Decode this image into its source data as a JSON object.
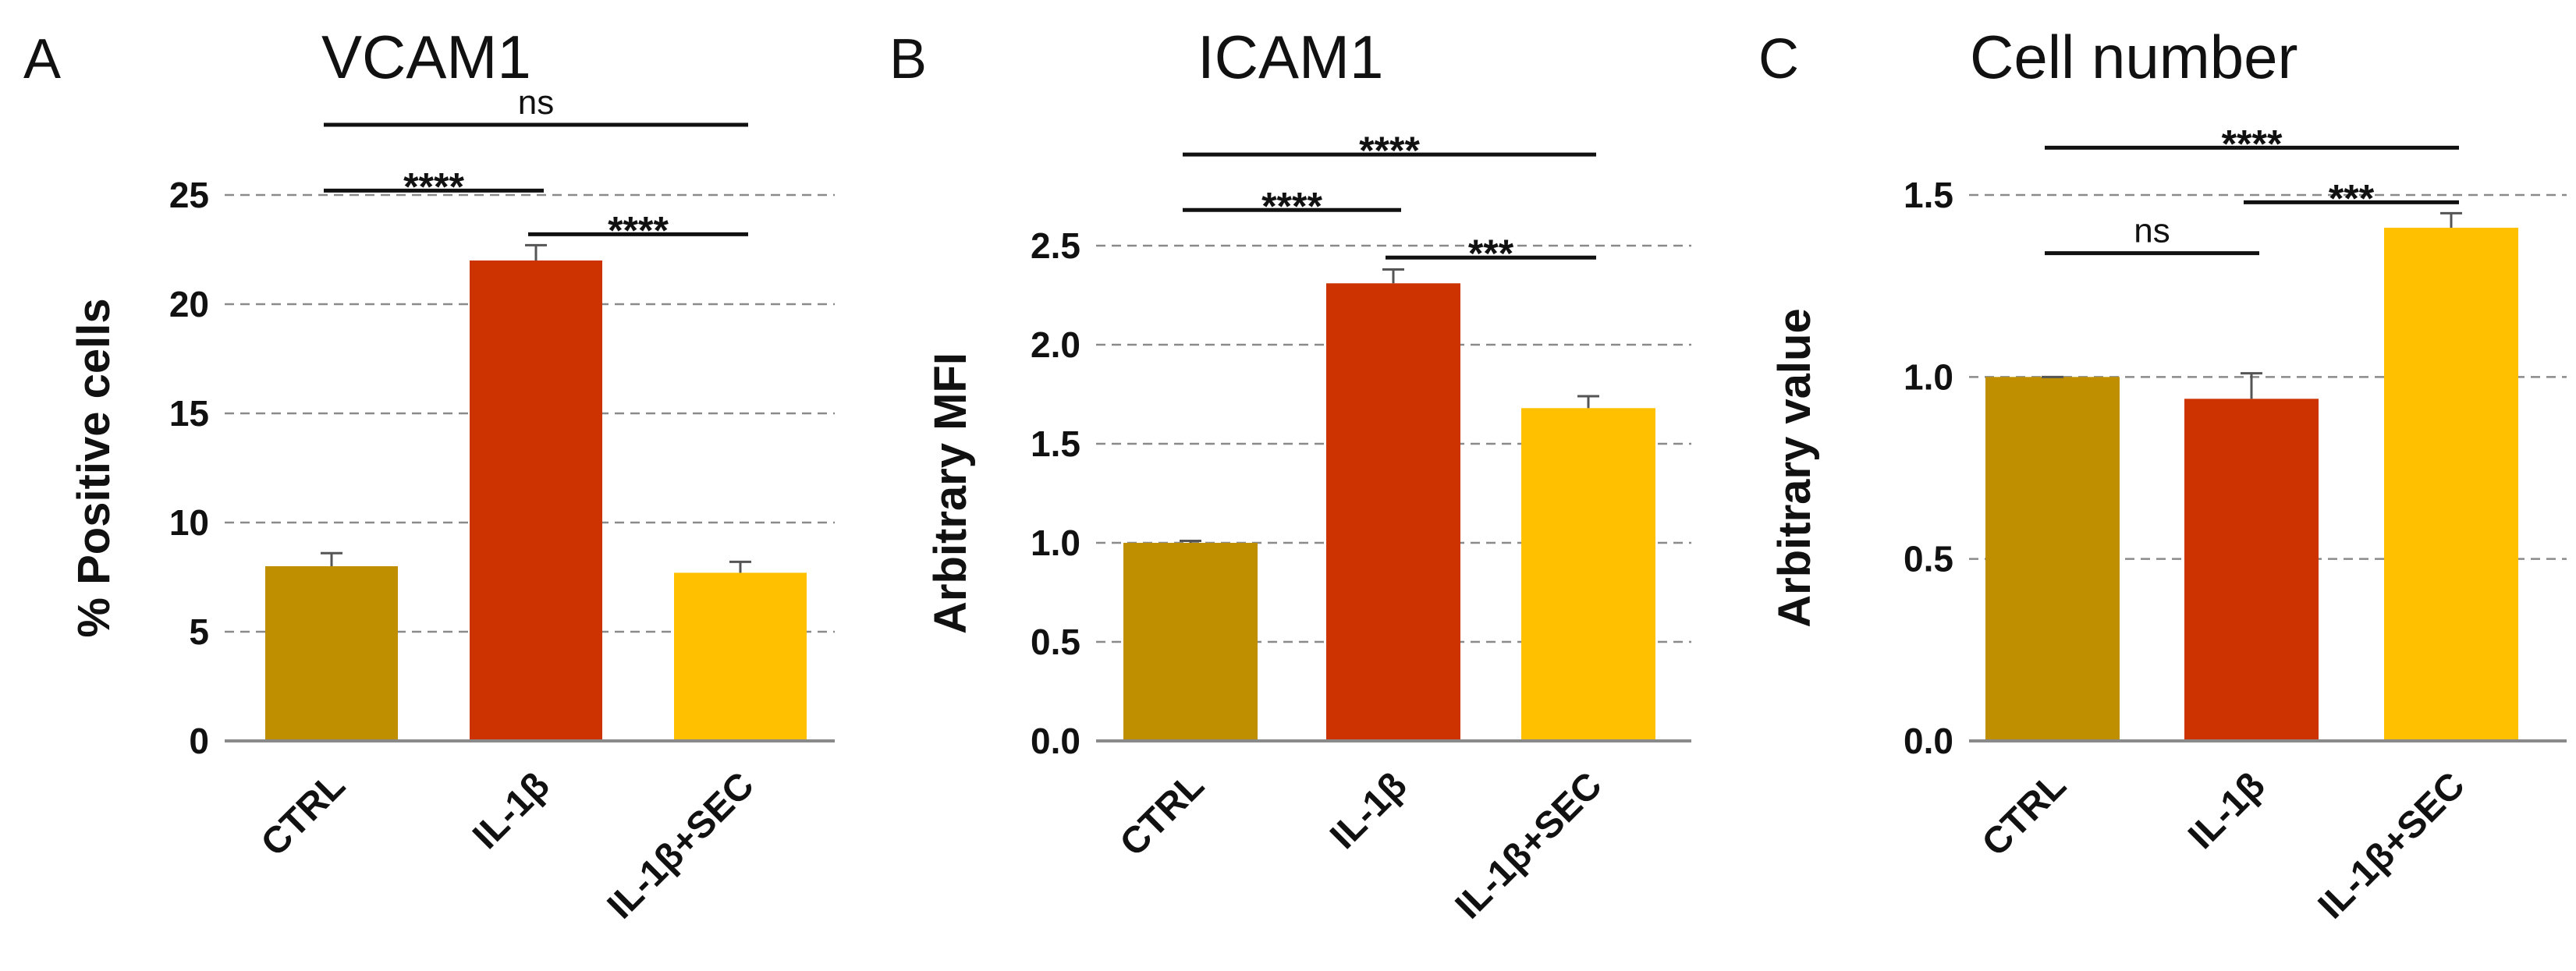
{
  "chart_data": [
    {
      "type": "bar",
      "panel": "A",
      "title": "VCAM1",
      "ylabel": "% Positive cells",
      "xlabel": "",
      "categories": [
        "CTRL",
        "IL-1β",
        "IL-1β+SEC"
      ],
      "values": [
        8.0,
        22.0,
        7.7
      ],
      "errors": [
        0.6,
        0.7,
        0.5
      ],
      "colors": [
        "#bf8f00",
        "#cc3300",
        "#ffc000"
      ],
      "ylim": [
        0,
        25
      ],
      "yticks": [
        0,
        5,
        10,
        15,
        20,
        25
      ],
      "ytick_labels": [
        "0",
        "5",
        "10",
        "15",
        "20",
        "25"
      ],
      "grid": "dashed",
      "significance": [
        {
          "from": 0,
          "to": 2,
          "label": "ns",
          "level": 30
        },
        {
          "from": 0,
          "to": 1,
          "label": "****",
          "level": 25.2
        },
        {
          "from": 1,
          "to": 2,
          "label": "****",
          "level": 23.2
        }
      ]
    },
    {
      "type": "bar",
      "panel": "B",
      "title": "ICAM1",
      "ylabel": "Arbitrary MFI",
      "xlabel": "",
      "categories": [
        "CTRL",
        "IL-1β",
        "IL-1β+SEC"
      ],
      "values": [
        1.0,
        2.31,
        1.68
      ],
      "errors": [
        0.01,
        0.07,
        0.06
      ],
      "colors": [
        "#bf8f00",
        "#cc3300",
        "#ffc000"
      ],
      "ylim": [
        0,
        2.5
      ],
      "yticks": [
        0,
        0.5,
        1.0,
        1.5,
        2.0,
        2.5
      ],
      "ytick_labels": [
        "0.0",
        "0.5",
        "1.0",
        "1.5",
        "2.0",
        "2.5"
      ],
      "grid": "dashed",
      "significance": [
        {
          "from": 0,
          "to": 2,
          "label": "****",
          "level": 2.96
        },
        {
          "from": 0,
          "to": 1,
          "label": "****",
          "level": 2.68
        },
        {
          "from": 1,
          "to": 2,
          "label": "***",
          "level": 2.44
        }
      ]
    },
    {
      "type": "bar",
      "panel": "C",
      "title": "Cell number",
      "ylabel": "Arbitrary value",
      "xlabel": "",
      "categories": [
        "CTRL",
        "IL-1β",
        "IL-1β+SEC"
      ],
      "values": [
        1.0,
        0.94,
        1.41
      ],
      "errors": [
        0.0,
        0.07,
        0.04
      ],
      "colors": [
        "#bf8f00",
        "#cc3300",
        "#ffc000"
      ],
      "ylim": [
        0,
        1.5
      ],
      "yticks": [
        0,
        0.5,
        1.0,
        1.5
      ],
      "ytick_labels": [
        "0.0",
        "0.5",
        "1.0",
        "1.5"
      ],
      "grid": "dashed",
      "significance": [
        {
          "from": 0,
          "to": 2,
          "label": "****",
          "level": 1.63
        },
        {
          "from": 1,
          "to": 2,
          "label": "***",
          "level": 1.48
        },
        {
          "from": 0,
          "to": 1,
          "label": "ns",
          "level": 1.34
        }
      ]
    }
  ]
}
